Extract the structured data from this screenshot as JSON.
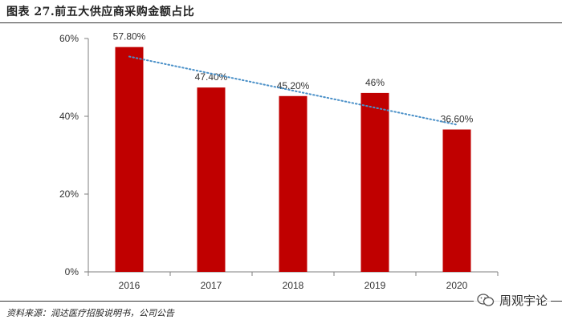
{
  "title": "图表 27.前五大供应商采购金额占比",
  "source": "资料来源：润达医疗招股说明书，公司公告",
  "watermark": {
    "text": "周观宇论",
    "icon": "wechat-icon"
  },
  "colors": {
    "bar": "#c00000",
    "trend": "#4a90c8",
    "axis": "#7f7f7f",
    "grid": "#bfbfbf"
  },
  "chart_data": {
    "type": "bar",
    "categories": [
      "2016",
      "2017",
      "2018",
      "2019",
      "2020"
    ],
    "values": [
      57.8,
      47.4,
      45.2,
      46,
      36.6
    ],
    "data_labels": [
      "57.80%",
      "47.40%",
      "45.20%",
      "46%",
      "36.60%"
    ],
    "ylim": [
      0,
      60
    ],
    "yticks": [
      0,
      20,
      40,
      60
    ],
    "ytick_labels": [
      "0%",
      "20%",
      "40%",
      "60%"
    ],
    "trendline": {
      "type": "linear",
      "style": "dotted"
    },
    "grid": false,
    "legend": "none"
  }
}
